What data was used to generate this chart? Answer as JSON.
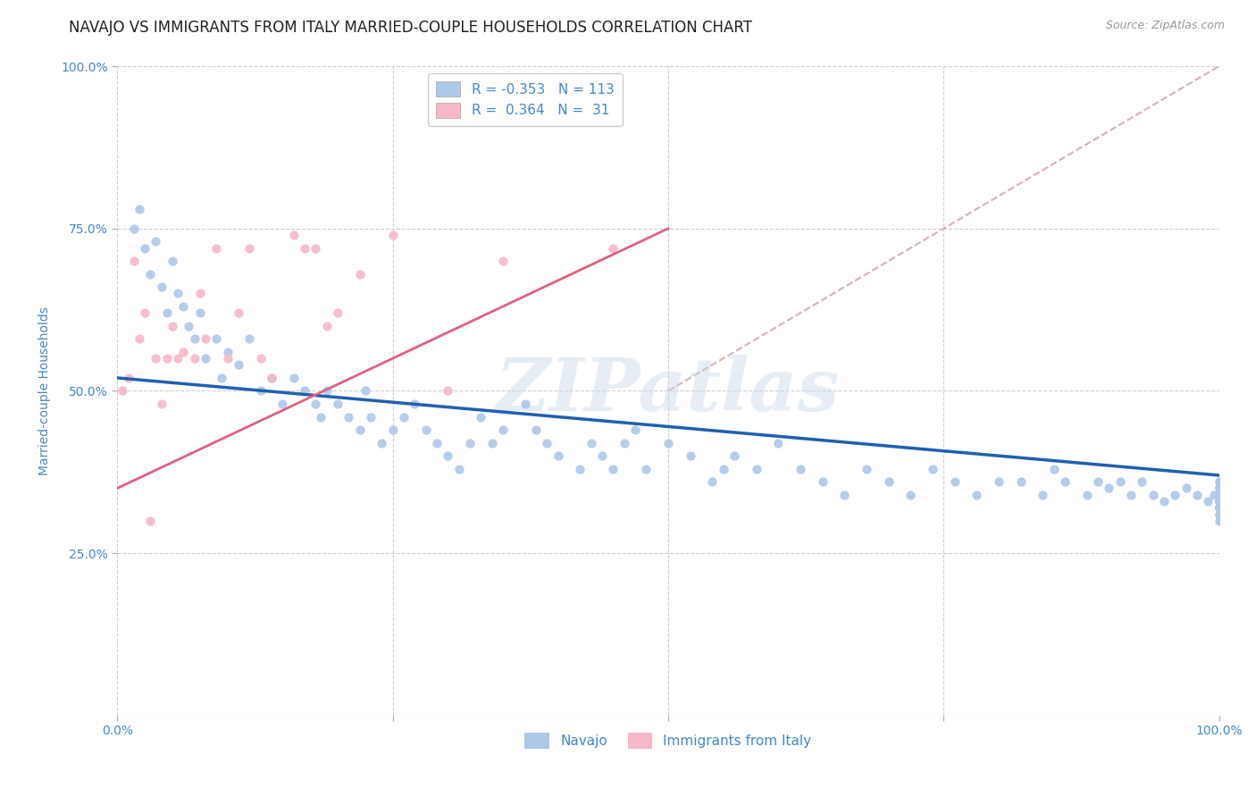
{
  "title": "NAVAJO VS IMMIGRANTS FROM ITALY MARRIED-COUPLE HOUSEHOLDS CORRELATION CHART",
  "source": "Source: ZipAtlas.com",
  "ylabel": "Married-couple Households",
  "navajo_R": -0.353,
  "navajo_N": 113,
  "italy_R": 0.364,
  "italy_N": 31,
  "navajo_color": "#adc8e8",
  "italy_color": "#f5b8c8",
  "navajo_line_color": "#2060b0",
  "italy_line_color": "#e06080",
  "diagonal_color": "#d8b0bc",
  "background_color": "#ffffff",
  "grid_color": "#d0d0d0",
  "title_color": "#222222",
  "axis_label_color": "#4488cc",
  "legend_R_color": "#4488cc",
  "navajo_x": [
    1.5,
    2.0,
    2.5,
    3.0,
    3.5,
    4.0,
    4.5,
    5.0,
    5.5,
    6.0,
    6.5,
    7.0,
    7.5,
    8.0,
    9.0,
    9.5,
    10.0,
    11.0,
    12.0,
    13.0,
    14.0,
    15.0,
    16.0,
    17.0,
    18.0,
    18.5,
    19.0,
    20.0,
    21.0,
    22.0,
    22.5,
    23.0,
    24.0,
    25.0,
    26.0,
    27.0,
    28.0,
    29.0,
    30.0,
    31.0,
    32.0,
    33.0,
    34.0,
    35.0,
    37.0,
    38.0,
    39.0,
    40.0,
    42.0,
    43.0,
    44.0,
    45.0,
    46.0,
    47.0,
    48.0,
    50.0,
    52.0,
    54.0,
    55.0,
    56.0,
    58.0,
    60.0,
    62.0,
    64.0,
    66.0,
    68.0,
    70.0,
    72.0,
    74.0,
    76.0,
    78.0,
    80.0,
    82.0,
    84.0,
    85.0,
    86.0,
    88.0,
    89.0,
    90.0,
    91.0,
    92.0,
    93.0,
    94.0,
    95.0,
    96.0,
    97.0,
    98.0,
    99.0,
    99.5,
    100.0,
    100.0,
    100.0,
    100.0,
    100.0,
    100.0,
    100.0,
    100.0,
    100.0,
    100.0,
    100.0,
    100.0,
    100.0,
    100.0,
    100.0,
    100.0,
    100.0,
    100.0,
    100.0,
    100.0,
    100.0,
    100.0,
    100.0,
    100.0
  ],
  "navajo_y": [
    75.0,
    78.0,
    72.0,
    68.0,
    73.0,
    66.0,
    62.0,
    70.0,
    65.0,
    63.0,
    60.0,
    58.0,
    62.0,
    55.0,
    58.0,
    52.0,
    56.0,
    54.0,
    58.0,
    50.0,
    52.0,
    48.0,
    52.0,
    50.0,
    48.0,
    46.0,
    50.0,
    48.0,
    46.0,
    44.0,
    50.0,
    46.0,
    42.0,
    44.0,
    46.0,
    48.0,
    44.0,
    42.0,
    40.0,
    38.0,
    42.0,
    46.0,
    42.0,
    44.0,
    48.0,
    44.0,
    42.0,
    40.0,
    38.0,
    42.0,
    40.0,
    38.0,
    42.0,
    44.0,
    38.0,
    42.0,
    40.0,
    36.0,
    38.0,
    40.0,
    38.0,
    42.0,
    38.0,
    36.0,
    34.0,
    38.0,
    36.0,
    34.0,
    38.0,
    36.0,
    34.0,
    36.0,
    36.0,
    34.0,
    38.0,
    36.0,
    34.0,
    36.0,
    35.0,
    36.0,
    34.0,
    36.0,
    34.0,
    33.0,
    34.0,
    35.0,
    34.0,
    33.0,
    34.0,
    33.0,
    36.0,
    34.0,
    35.0,
    33.0,
    32.0,
    34.0,
    35.0,
    36.0,
    33.0,
    34.0,
    33.0,
    32.0,
    34.0,
    35.0,
    33.0,
    32.0,
    31.0,
    34.0,
    32.0,
    30.0,
    33.0,
    32.0,
    31.0
  ],
  "italy_x": [
    0.5,
    1.0,
    1.5,
    2.0,
    2.5,
    3.0,
    3.5,
    4.0,
    4.5,
    5.0,
    5.5,
    6.0,
    7.0,
    7.5,
    8.0,
    9.0,
    10.0,
    11.0,
    12.0,
    13.0,
    14.0,
    16.0,
    17.0,
    18.0,
    19.0,
    20.0,
    22.0,
    25.0,
    30.0,
    35.0,
    45.0
  ],
  "italy_y": [
    50.0,
    52.0,
    70.0,
    58.0,
    62.0,
    30.0,
    55.0,
    48.0,
    55.0,
    60.0,
    55.0,
    56.0,
    55.0,
    65.0,
    58.0,
    72.0,
    55.0,
    62.0,
    72.0,
    55.0,
    52.0,
    74.0,
    72.0,
    72.0,
    60.0,
    62.0,
    68.0,
    74.0,
    50.0,
    70.0,
    72.0
  ],
  "navajo_line_x0": 0.0,
  "navajo_line_y0": 52.0,
  "navajo_line_x1": 100.0,
  "navajo_line_y1": 37.0,
  "italy_line_x0": 0.0,
  "italy_line_y0": 35.0,
  "italy_line_x1": 50.0,
  "italy_line_y1": 75.0,
  "diag_x0": 50.0,
  "diag_y0": 50.0,
  "diag_x1": 100.0,
  "diag_y1": 100.0,
  "xlim": [
    0.0,
    100.0
  ],
  "ylim": [
    0.0,
    100.0
  ],
  "x_ticks": [
    0.0,
    25.0,
    50.0,
    75.0,
    100.0
  ],
  "x_tick_labels": [
    "0.0%",
    "",
    "",
    "",
    "100.0%"
  ],
  "y_ticks": [
    25.0,
    50.0,
    75.0,
    100.0
  ],
  "y_tick_labels": [
    "25.0%",
    "50.0%",
    "75.0%",
    "100.0%"
  ],
  "watermark": "ZIPatlas",
  "title_fontsize": 12,
  "axis_fontsize": 10,
  "legend_fontsize": 11,
  "marker_size": 55
}
